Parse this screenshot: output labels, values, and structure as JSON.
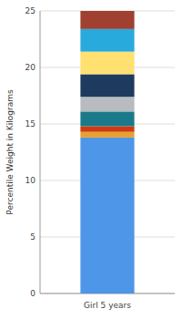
{
  "chart_data": {
    "type": "bar",
    "stacked": true,
    "ylabel": "Percentile Weight in Kilograms",
    "categories": [
      "Girl 5 years"
    ],
    "series": [
      {
        "color": "#4D96E8",
        "values": [
          13.8
        ]
      },
      {
        "color": "#E8A030",
        "values": [
          0.5
        ]
      },
      {
        "color": "#D03A10",
        "values": [
          0.5
        ]
      },
      {
        "color": "#1A7A8A",
        "values": [
          1.3
        ]
      },
      {
        "color": "#B8BCC0",
        "values": [
          1.3
        ]
      },
      {
        "color": "#1E3A5F",
        "values": [
          2.0
        ]
      },
      {
        "color": "#FFE070",
        "values": [
          2.0
        ]
      },
      {
        "color": "#29AADC",
        "values": [
          2.0
        ]
      },
      {
        "color": "#A04030",
        "values": [
          1.6
        ]
      }
    ],
    "ylim": [
      0,
      25
    ],
    "yticks": [
      0,
      5,
      10,
      15,
      20,
      25
    ],
    "grid": true
  }
}
